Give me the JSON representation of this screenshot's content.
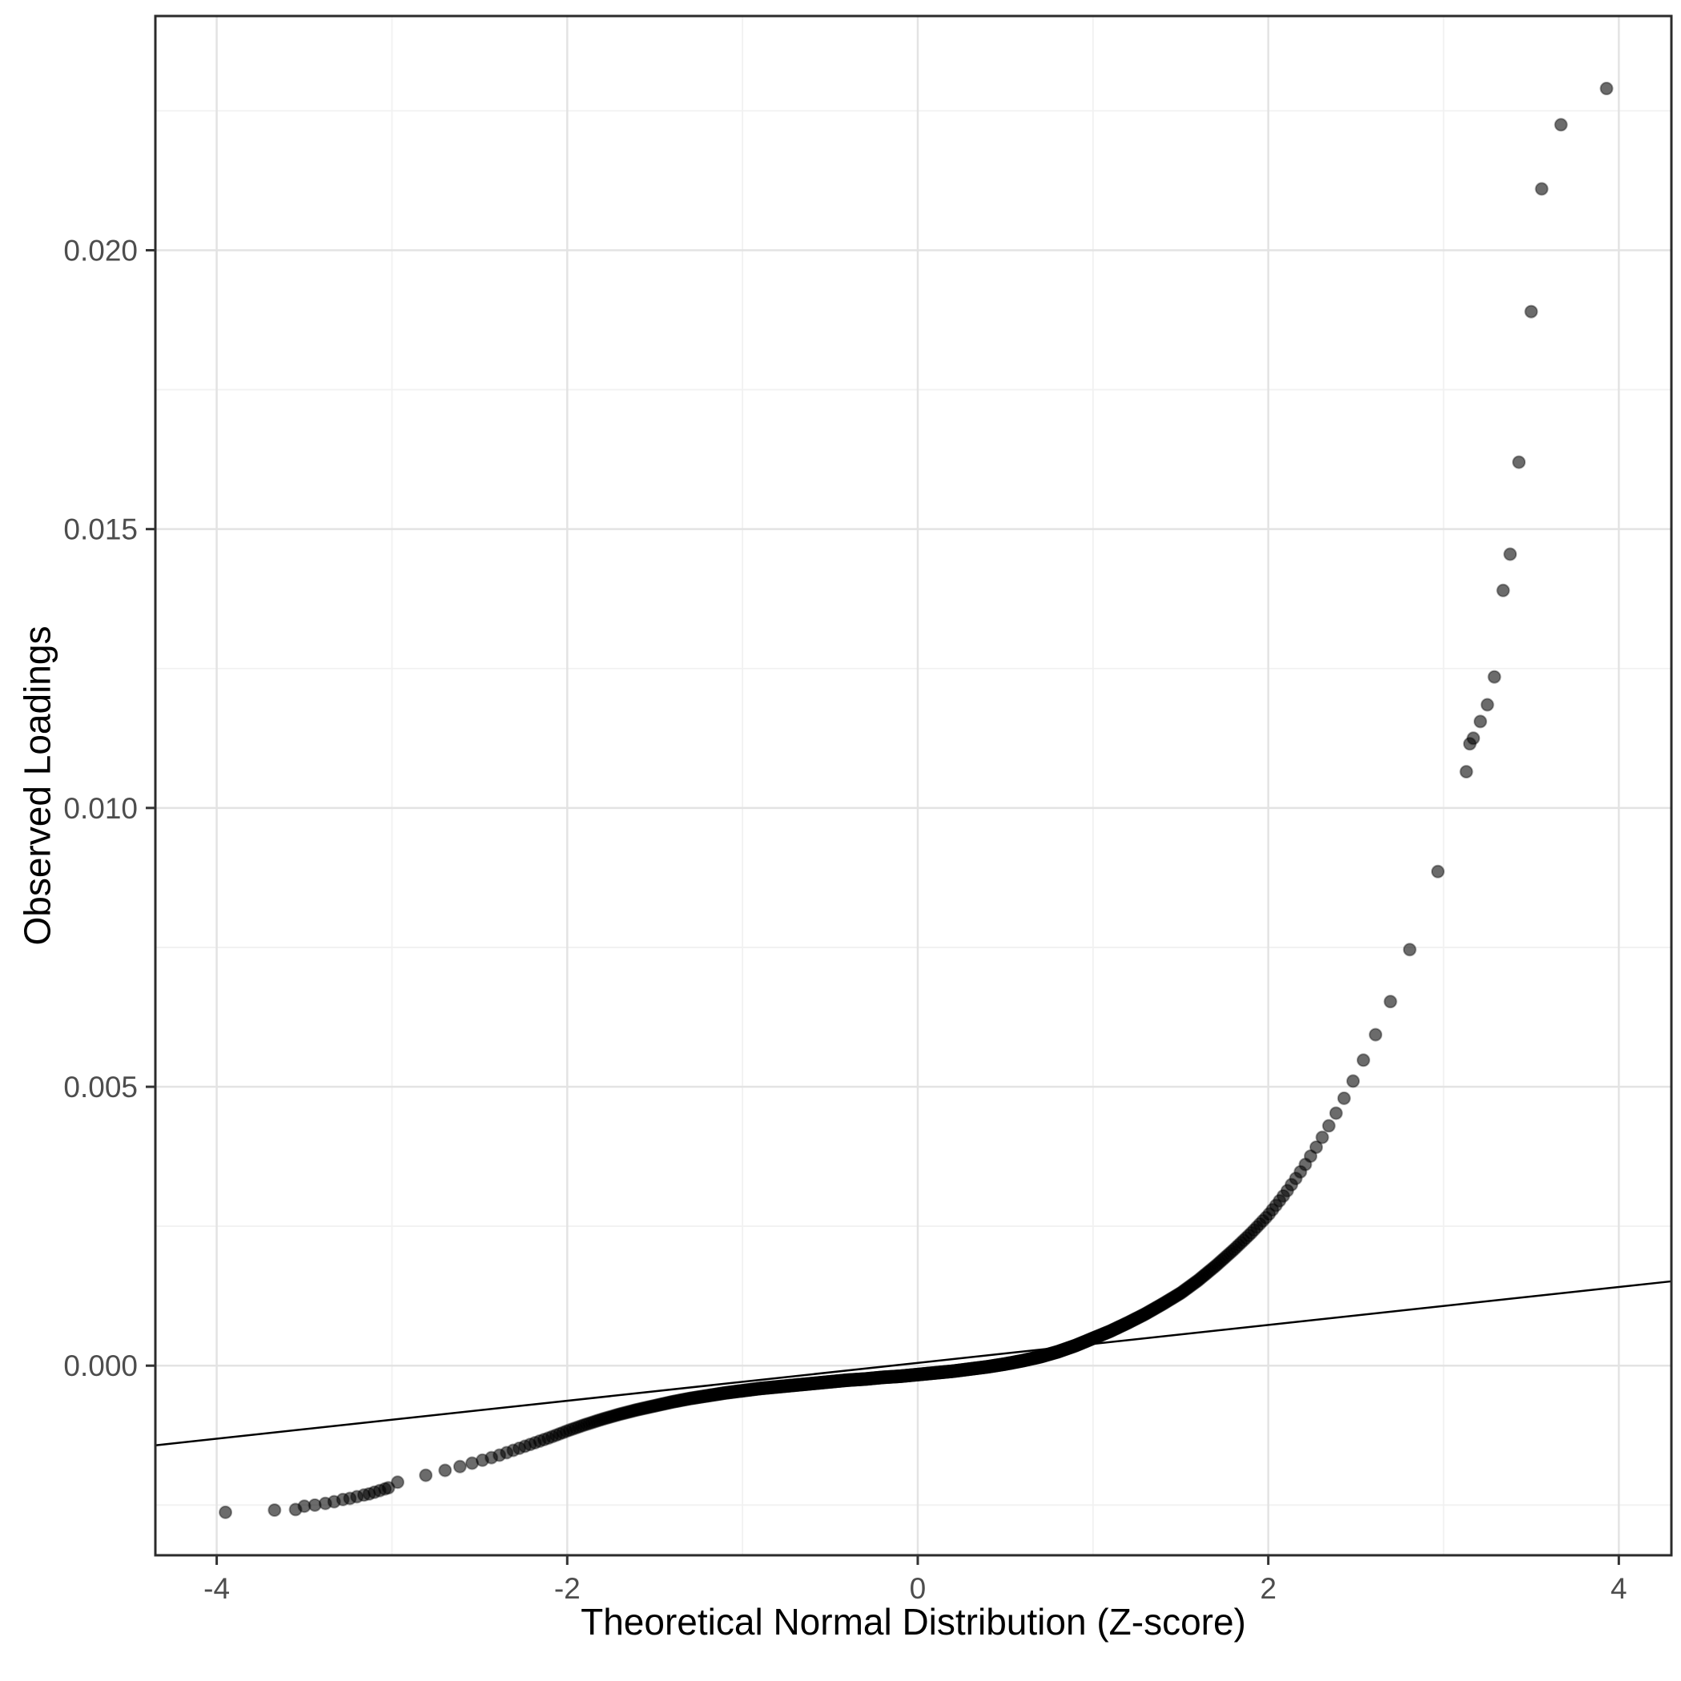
{
  "chart_data": {
    "type": "scatter",
    "subtype": "qq-plot",
    "title": "",
    "xlabel": "Theoretical Normal Distribution (Z-score)",
    "ylabel": "Observed Loadings",
    "xlim": [
      -4.35,
      4.3
    ],
    "ylim": [
      -0.0034,
      0.0242
    ],
    "x_ticks": {
      "values": [
        -4,
        -2,
        0,
        2,
        4
      ],
      "labels": [
        "-4",
        "-2",
        "0",
        "2",
        "4"
      ]
    },
    "y_ticks": {
      "values": [
        0.0,
        0.005,
        0.01,
        0.015,
        0.02
      ],
      "labels": [
        "0.000",
        "0.005",
        "0.010",
        "0.015",
        "0.020"
      ]
    },
    "x_minor": [
      -3,
      -1,
      1,
      3
    ],
    "y_minor": [
      -0.0025,
      0.0025,
      0.0075,
      0.0125,
      0.0175,
      0.0225
    ],
    "grid": {
      "on": true,
      "major_color": "#E3E3E3",
      "minor_color": "#F1F1F1"
    },
    "panel_border_color": "#2B2B2B",
    "tick_color": "#333333",
    "tick_label_color": "#4D4D4D",
    "axis_title_color": "#000000",
    "point_style": {
      "color": "#000000",
      "fill_opacity": 0.58,
      "stroke_opacity": 0.35,
      "radius": 7.5
    },
    "reference_line": {
      "slope": 0.00034,
      "intercept": 5e-05,
      "color": "#000000",
      "width": 2.5
    },
    "qq_curve": {
      "n_points": 1000,
      "z_range": [
        -3.05,
        3.1
      ],
      "control_points": [
        [
          -3.05,
          -0.00215
        ],
        [
          -2.9,
          -0.00204
        ],
        [
          -2.8,
          -0.00196
        ],
        [
          -2.7,
          -0.00188
        ],
        [
          -2.6,
          -0.0018
        ],
        [
          -2.5,
          -0.00171
        ],
        [
          -2.4,
          -0.00162
        ],
        [
          -2.3,
          -0.00151
        ],
        [
          -2.2,
          -0.0014
        ],
        [
          -2.1,
          -0.00129
        ],
        [
          -2.0,
          -0.00117
        ],
        [
          -1.9,
          -0.00106
        ],
        [
          -1.8,
          -0.00096
        ],
        [
          -1.7,
          -0.00087
        ],
        [
          -1.6,
          -0.00079
        ],
        [
          -1.5,
          -0.00072
        ],
        [
          -1.4,
          -0.00065
        ],
        [
          -1.3,
          -0.00059
        ],
        [
          -1.2,
          -0.00054
        ],
        [
          -1.1,
          -0.00049
        ],
        [
          -1.0,
          -0.00045
        ],
        [
          -0.9,
          -0.00041
        ],
        [
          -0.8,
          -0.00038
        ],
        [
          -0.7,
          -0.00035
        ],
        [
          -0.6,
          -0.00032
        ],
        [
          -0.5,
          -0.00029
        ],
        [
          -0.4,
          -0.00026
        ],
        [
          -0.3,
          -0.00024
        ],
        [
          -0.2,
          -0.00021
        ],
        [
          -0.1,
          -0.00019
        ],
        [
          0.0,
          -0.00016
        ],
        [
          0.1,
          -0.00013
        ],
        [
          0.2,
          -0.0001
        ],
        [
          0.3,
          -6e-05
        ],
        [
          0.4,
          -2e-05
        ],
        [
          0.5,
          3e-05
        ],
        [
          0.6,
          9e-05
        ],
        [
          0.7,
          0.00016
        ],
        [
          0.8,
          0.00025
        ],
        [
          0.9,
          0.00036
        ],
        [
          1.0,
          0.00049
        ],
        [
          1.1,
          0.00062
        ],
        [
          1.2,
          0.00077
        ],
        [
          1.3,
          0.00093
        ],
        [
          1.4,
          0.00111
        ],
        [
          1.5,
          0.0013
        ],
        [
          1.6,
          0.00153
        ],
        [
          1.7,
          0.00179
        ],
        [
          1.8,
          0.00207
        ],
        [
          1.9,
          0.00237
        ],
        [
          2.0,
          0.0027
        ],
        [
          2.1,
          0.0031
        ],
        [
          2.2,
          0.00355
        ],
        [
          2.3,
          0.00405
        ],
        [
          2.4,
          0.0046
        ],
        [
          2.5,
          0.0052
        ],
        [
          2.6,
          0.00585
        ],
        [
          2.7,
          0.00655
        ],
        [
          2.8,
          0.0074
        ],
        [
          2.9,
          0.00825
        ],
        [
          2.95,
          0.0087
        ],
        [
          3.0,
          0.00915
        ],
        [
          3.05,
          0.00965
        ],
        [
          3.1,
          0.01035
        ]
      ]
    },
    "low_tail_points": [
      [
        -3.95,
        -0.00263
      ],
      [
        -3.67,
        -0.00259
      ],
      [
        -3.55,
        -0.00258
      ],
      [
        -3.5,
        -0.00252
      ],
      [
        -3.44,
        -0.0025
      ],
      [
        -3.38,
        -0.00247
      ],
      [
        -3.33,
        -0.00244
      ],
      [
        -3.28,
        -0.0024
      ],
      [
        -3.24,
        -0.00238
      ],
      [
        -3.2,
        -0.00235
      ],
      [
        -3.16,
        -0.00232
      ],
      [
        -3.13,
        -0.0023
      ],
      [
        -3.1,
        -0.00227
      ],
      [
        -3.07,
        -0.00224
      ],
      [
        -3.04,
        -0.00221
      ],
      [
        -3.02,
        -0.00219
      ]
    ],
    "high_tail_points": [
      [
        3.13,
        0.01065
      ],
      [
        3.15,
        0.01115
      ],
      [
        3.17,
        0.01125
      ],
      [
        3.21,
        0.01155
      ],
      [
        3.25,
        0.01185
      ],
      [
        3.29,
        0.01235
      ],
      [
        3.34,
        0.0139
      ],
      [
        3.38,
        0.01455
      ],
      [
        3.43,
        0.0162
      ],
      [
        3.5,
        0.0189
      ],
      [
        3.56,
        0.0211
      ],
      [
        3.67,
        0.02225
      ],
      [
        3.93,
        0.0229
      ]
    ]
  }
}
